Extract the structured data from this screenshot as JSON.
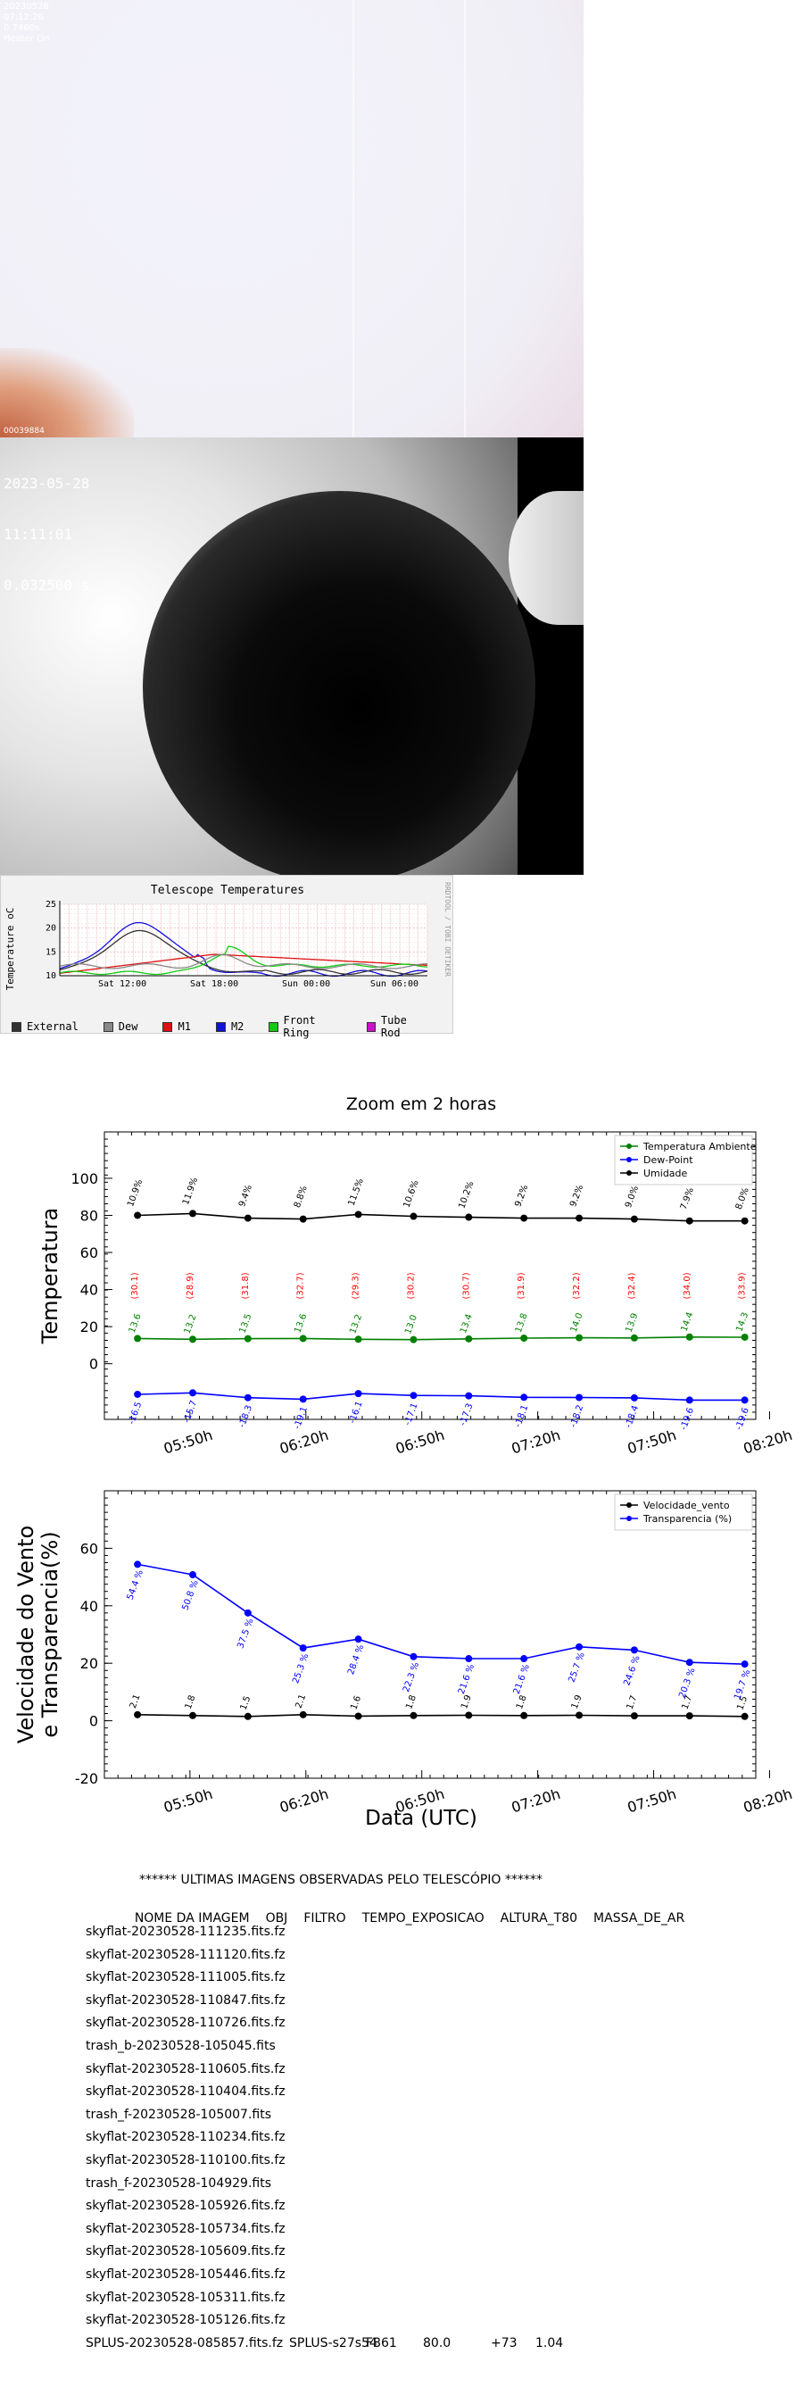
{
  "cam1": {
    "date": "20230528",
    "time": "07:12:26",
    "exposure": "0.7460s",
    "heater": "Heater On",
    "serial": "00039884"
  },
  "cam2": {
    "date": "2023-05-28",
    "time": "11:11:01",
    "exposure": "0.032500 s"
  },
  "telescope": {
    "title": "Telescope Temperatures",
    "ylabel": "Temperature oC",
    "side_label": "RRDTOOL / TOBI OETIKER",
    "legend": [
      {
        "label": "External",
        "color": "#333333"
      },
      {
        "label": "Dew",
        "color": "#888888"
      },
      {
        "label": "M1",
        "color": "#dd1111"
      },
      {
        "label": "M2",
        "color": "#1111dd"
      },
      {
        "label": "Front Ring",
        "color": "#11cc11"
      },
      {
        "label": "Tube Rod",
        "color": "#cc11cc"
      }
    ]
  },
  "zoom": {
    "title": "Zoom em 2 horas",
    "xlabel": "Data (UTC)"
  },
  "chart_data": [
    {
      "type": "line",
      "title": "Zoom em 2 horas",
      "ylabel": "Temperatura",
      "ylim": [
        -30,
        125
      ],
      "yticks": [
        0,
        20,
        40,
        60,
        80,
        100
      ],
      "xlim": [
        0,
        11.8
      ],
      "xticks": [
        {
          "pos": 1.55,
          "label": "05:50h"
        },
        {
          "pos": 3.65,
          "label": "06:20h"
        },
        {
          "pos": 5.75,
          "label": "06:50h"
        },
        {
          "pos": 7.85,
          "label": "07:20h"
        },
        {
          "pos": 9.95,
          "label": "07:50h"
        },
        {
          "pos": 12.05,
          "label": "08:20h"
        }
      ],
      "x": [
        0.6,
        1.6,
        2.6,
        3.6,
        4.6,
        5.6,
        6.6,
        7.6,
        8.6,
        9.6,
        10.6,
        11.6
      ],
      "series": [
        {
          "name": "Temperatura Ambiente",
          "color": "#008000",
          "values": [
            13.6,
            13.2,
            13.5,
            13.6,
            13.2,
            13.0,
            13.4,
            13.8,
            14.0,
            13.9,
            14.4,
            14.3
          ],
          "labels": [
            "13.6",
            "13.2",
            "13.5",
            "13.6",
            "13.2",
            "13.0",
            "13.4",
            "13.8",
            "14.0",
            "13.9",
            "14.4",
            "14.3"
          ]
        },
        {
          "name": "Dew-Point",
          "color": "#0000ff",
          "values": [
            -16.5,
            -15.7,
            -18.3,
            -19.1,
            -16.1,
            -17.1,
            -17.3,
            -18.1,
            -18.2,
            -18.4,
            -19.6,
            -19.6
          ],
          "labels": [
            "-16.5",
            "-15.7",
            "-18.3",
            "-19.1",
            "-16.1",
            "-17.1",
            "-17.3",
            "-18.1",
            "-18.2",
            "-18.4",
            "-19.6",
            "-19.6"
          ]
        },
        {
          "name": "Umidade",
          "color": "#000000",
          "values": [
            80,
            81,
            78.5,
            78,
            80.5,
            79.5,
            79,
            78.5,
            78.5,
            78,
            77,
            77
          ],
          "labels": [
            "10.9%",
            "11.9%",
            "9.4%",
            "8.8%",
            "11.5%",
            "10.6%",
            "10.2%",
            "9.2%",
            "9.2%",
            "9.0%",
            "7.9%",
            "8.0%"
          ]
        }
      ],
      "annotations": {
        "color": "#ff0000",
        "y": 42,
        "labels": [
          "(30.1)",
          "(28.9)",
          "(31.8)",
          "(32.7)",
          "(29.3)",
          "(30.2)",
          "(30.7)",
          "(31.9)",
          "(32.2)",
          "(32.4)",
          "(34.0)",
          "(33.9)"
        ]
      },
      "legend": "top-right"
    },
    {
      "type": "line",
      "ylabel": "Velocidade do Vento\ne Transparencia(%)",
      "xlabel": "Data (UTC)",
      "ylim": [
        -20,
        80
      ],
      "yticks": [
        -20,
        0,
        20,
        40,
        60
      ],
      "xlim": [
        0,
        11.8
      ],
      "xticks": [
        {
          "pos": 1.55,
          "label": "05:50h"
        },
        {
          "pos": 3.65,
          "label": "06:20h"
        },
        {
          "pos": 5.75,
          "label": "06:50h"
        },
        {
          "pos": 7.85,
          "label": "07:20h"
        },
        {
          "pos": 9.95,
          "label": "07:50h"
        },
        {
          "pos": 12.05,
          "label": "08:20h"
        }
      ],
      "x": [
        0.6,
        1.6,
        2.6,
        3.6,
        4.6,
        5.6,
        6.6,
        7.6,
        8.6,
        9.6,
        10.6,
        11.6
      ],
      "series": [
        {
          "name": "Velocidade_vento",
          "color": "#000000",
          "values": [
            2.1,
            1.8,
            1.5,
            2.1,
            1.6,
            1.8,
            1.9,
            1.8,
            1.9,
            1.7,
            1.7,
            1.5
          ],
          "labels": [
            "2.1",
            "1.8",
            "1.5",
            "2.1",
            "1.6",
            "1.8",
            "1.9",
            "1.8",
            "1.9",
            "1.7",
            "1.7",
            "1.5"
          ]
        },
        {
          "name": "Transparencia (%)",
          "color": "#0000ff",
          "values": [
            54.4,
            50.8,
            37.5,
            25.3,
            28.4,
            22.3,
            21.6,
            21.6,
            25.7,
            24.6,
            20.3,
            19.7
          ],
          "labels": [
            "54.4 %",
            "50.8 %",
            "37.5 %",
            "25.3 %",
            "28.4 %",
            "22.3 %",
            "21.6 %",
            "21.6 %",
            "25.7 %",
            "24.6 %",
            "20.3 %",
            "19.7 %"
          ]
        }
      ],
      "legend": "top-right"
    }
  ],
  "images_table": {
    "title": "****** ULTIMAS IMAGENS OBSERVADAS PELO TELESCÓPIO ******",
    "headers": [
      "NOME DA IMAGEM",
      "OBJ",
      "FILTRO",
      "TEMPO_EXPOSICAO",
      "ALTURA_T80",
      "MASSA_DE_AR"
    ],
    "rows": [
      [
        "skyflat-20230528-111235.fits.fz"
      ],
      [
        "skyflat-20230528-111120.fits.fz"
      ],
      [
        "skyflat-20230528-111005.fits.fz"
      ],
      [
        "skyflat-20230528-110847.fits.fz"
      ],
      [
        "skyflat-20230528-110726.fits.fz"
      ],
      [
        "trash_b-20230528-105045.fits"
      ],
      [
        "skyflat-20230528-110605.fits.fz"
      ],
      [
        "skyflat-20230528-110404.fits.fz"
      ],
      [
        "trash_f-20230528-105007.fits"
      ],
      [
        "skyflat-20230528-110234.fits.fz"
      ],
      [
        "skyflat-20230528-110100.fits.fz"
      ],
      [
        "trash_f-20230528-104929.fits"
      ],
      [
        "skyflat-20230528-105926.fits.fz"
      ],
      [
        "skyflat-20230528-105734.fits.fz"
      ],
      [
        "skyflat-20230528-105609.fits.fz"
      ],
      [
        "skyflat-20230528-105446.fits.fz"
      ],
      [
        "skyflat-20230528-105311.fits.fz"
      ],
      [
        "skyflat-20230528-105126.fits.fz"
      ],
      [
        "SPLUS-20230528-085857.fits.fz",
        "SPLUS-s27s54",
        "F861",
        "80.0",
        "+73",
        "1.04"
      ]
    ]
  }
}
